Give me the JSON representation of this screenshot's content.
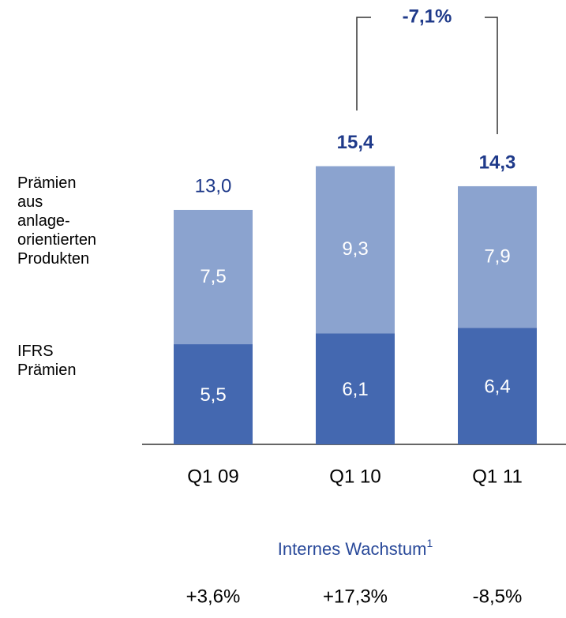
{
  "chart_data": {
    "type": "stacked_bar",
    "categories": [
      "Q1 09",
      "Q1 10",
      "Q1 11"
    ],
    "series": [
      {
        "name": "IFRS\nPrämien",
        "color": "#4468b0",
        "values": [
          5.5,
          6.1,
          6.4
        ],
        "value_labels": [
          "5,5",
          "6,1",
          "6,4"
        ]
      },
      {
        "name": "Prämien\naus\nanlage-\norientierten\nProdukten",
        "color": "#8ba3cf",
        "values": [
          7.5,
          9.3,
          7.9
        ],
        "value_labels": [
          "7,5",
          "9,3",
          "7,9"
        ]
      }
    ],
    "totals": {
      "values": [
        13.0,
        15.4,
        14.3
      ],
      "value_labels": [
        "13,0",
        "15,4",
        "14,3"
      ],
      "color": "#1f3a8a"
    },
    "annotation": "-7,1%",
    "growth": {
      "title": "Internes Wachstum",
      "footnote": "1",
      "values": [
        3.6,
        17.3,
        -8.5
      ],
      "value_labels": [
        "+3,6%",
        "+17,3%",
        "-8,5%"
      ],
      "color": "#2a4a9a"
    }
  }
}
